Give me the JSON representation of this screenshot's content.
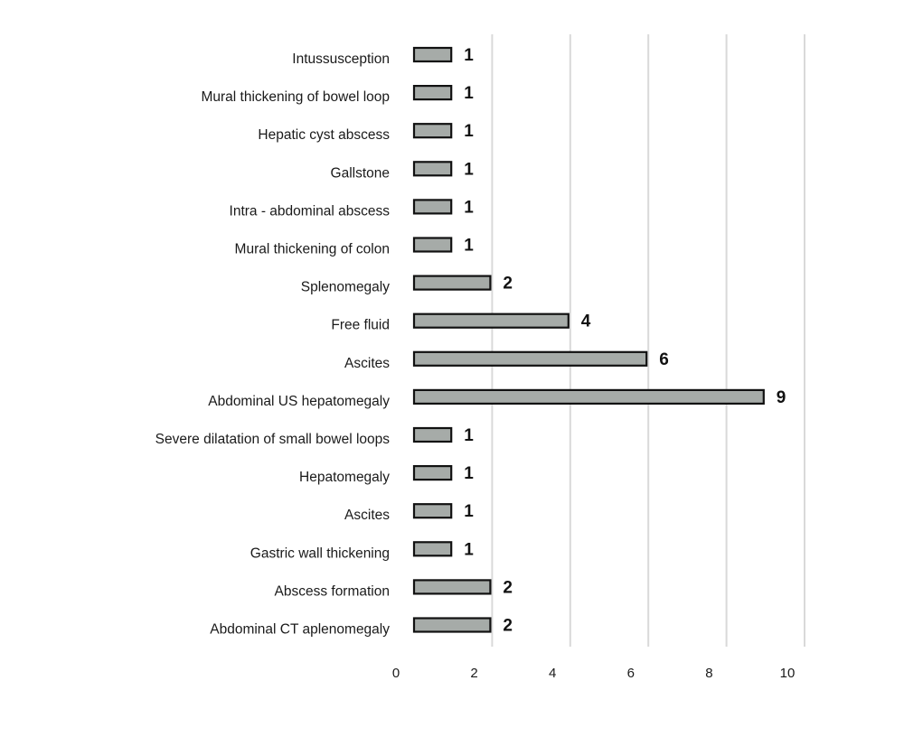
{
  "chart_data": {
    "type": "bar",
    "orientation": "horizontal",
    "title": "",
    "xlabel": "",
    "ylabel": "",
    "xlim": [
      0,
      10
    ],
    "x_ticks": [
      0,
      2,
      4,
      6,
      8,
      10
    ],
    "grid": "vertical",
    "legend": "none",
    "categories": [
      "Intussusception",
      "Mural thickening of bowel loop",
      "Hepatic cyst abscess",
      "Gallstone",
      "Intra - abdominal abscess",
      "Mural thickening of colon",
      "Splenomegaly",
      "Free fluid",
      "Ascites",
      "Abdominal US hepatomegaly",
      "Severe dilatation of small bowel loops",
      "Hepatomegaly",
      "Ascites",
      "Gastric wall thickening",
      "Abscess formation",
      "Abdominal CT aplenomegaly"
    ],
    "values": [
      1,
      1,
      1,
      1,
      1,
      1,
      2,
      4,
      6,
      9,
      1,
      1,
      1,
      1,
      2,
      2
    ],
    "colors": {
      "bar_fill": "#a6aba8",
      "bar_stroke": "#111111",
      "grid": "#d9d9d9"
    }
  }
}
